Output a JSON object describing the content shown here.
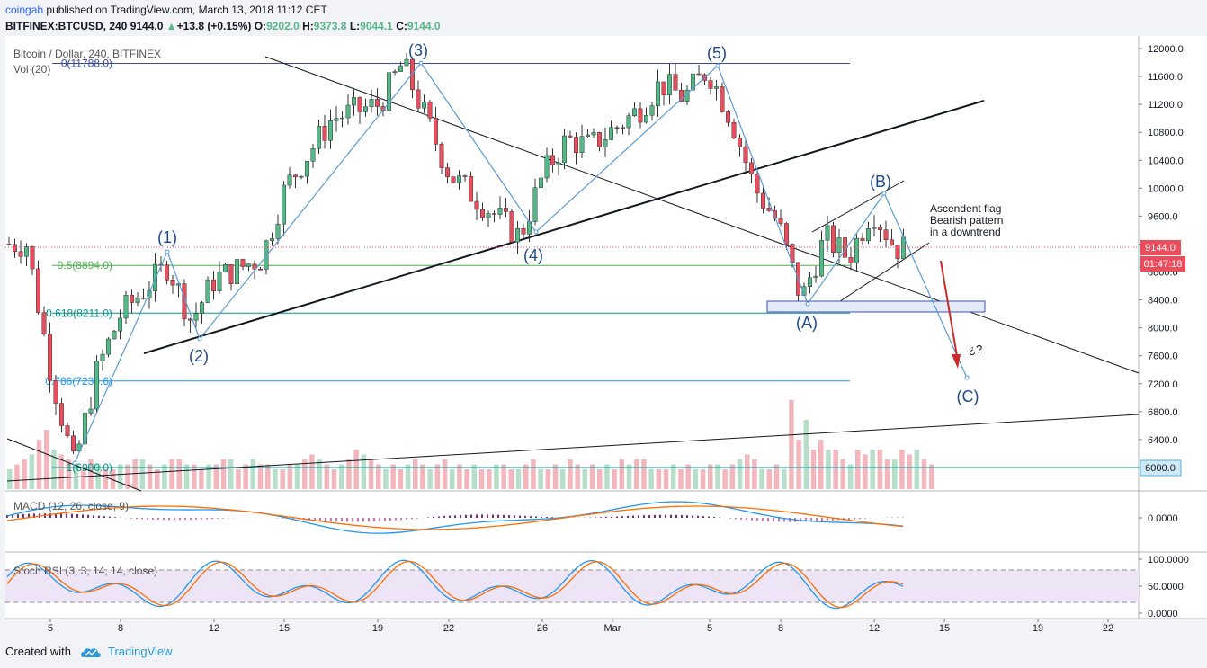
{
  "header": {
    "author": "coingab",
    "published_text": "published on TradingView.com, March 13, 2018 11:12 CET",
    "symbol": "BITFINEX:BTCUSD, 240",
    "last": "9144.0",
    "change_icon": "triangle-up-icon",
    "change": "+13.8 (+0.15%)",
    "o_label": "O:",
    "o": "9202.0",
    "h_label": "H:",
    "h": "9373.8",
    "l_label": "L:",
    "l": "9044.1",
    "c_label": "C:",
    "c": "9144.0"
  },
  "chart_labels": {
    "instrument": "Bitcoin / Dollar, 240, BITFINEX",
    "volume": "Vol (20)",
    "macd": "MACD (12, 26, close, 9)",
    "stoch": "Stoch RSI (3, 3, 14, 14, close)",
    "price_tag": "9144.0",
    "countdown_tag": "01:47:18",
    "level_6000_tag": "6000.0"
  },
  "colors": {
    "up": "#53b987",
    "down": "#eb4d5c",
    "wave": "#5b9bd5",
    "fib_0": "#3949ab",
    "fib_05": "#4caf50",
    "fib_0618": "#009688",
    "fib_0786": "#2196f3",
    "target_arrow": "#cc2a2a",
    "macd": "#2196f3",
    "signal": "#ff6d00",
    "stoch_band": "#ede4f5",
    "price_tag": "#eb4d5c"
  },
  "annotations": {
    "fib_levels": [
      {
        "label": "0(11788.0)",
        "price": 11788
      },
      {
        "label": "0.5(8894.0)",
        "price": 8894
      },
      {
        "label": "0.618(8211.0)",
        "price": 8211
      },
      {
        "label": "0.786(7238.6)",
        "price": 7238.6
      },
      {
        "label": "1(6000.0)",
        "price": 6000
      }
    ],
    "waves": [
      "(1)",
      "(2)",
      "(3)",
      "(4)",
      "(5)",
      "(A)",
      "(B)",
      "(C)"
    ],
    "flag_note": [
      "Ascendent flag",
      "Bearish pattern",
      "in a downtrend"
    ],
    "question": "¿?"
  },
  "footer": {
    "created_with": "Created with",
    "brand": "TradingView",
    "logo_icon": "tradingview-cloud-icon"
  },
  "chart_data": {
    "type": "candlestick",
    "title": "Bitcoin / Dollar, 240, BITFINEX",
    "price_axis": {
      "ticks": [
        12000,
        11600,
        11200,
        10800,
        10400,
        10000,
        9600,
        9200,
        8800,
        8400,
        8000,
        7600,
        7200,
        6800,
        6400,
        6000
      ],
      "range": [
        5750,
        12200
      ]
    },
    "x_ticks": [
      "5",
      "8",
      "12",
      "15",
      "19",
      "22",
      "26",
      "Mar",
      "5",
      "8",
      "12",
      "15",
      "19",
      "22"
    ],
    "series": [
      {
        "name": "BTCUSD",
        "close_path": [
          [
            "Feb 4",
            9200
          ],
          [
            "Feb 5",
            7400
          ],
          [
            "Feb 6",
            6000
          ],
          [
            "Feb 7",
            7400
          ],
          [
            "Feb 8",
            8200
          ],
          [
            "Feb 10",
            8900
          ],
          [
            "Feb 11",
            8100
          ],
          [
            "Feb 12",
            8700
          ],
          [
            "Feb 14",
            9000
          ],
          [
            "Feb 15",
            10000
          ],
          [
            "Feb 17",
            11000
          ],
          [
            "Feb 19",
            11200
          ],
          [
            "Feb 20",
            11788
          ],
          [
            "Feb 21",
            11000
          ],
          [
            "Feb 22",
            10200
          ],
          [
            "Feb 24",
            9600
          ],
          [
            "Feb 25",
            9300
          ],
          [
            "Feb 26",
            10200
          ],
          [
            "Feb 27",
            10700
          ],
          [
            "Feb 28",
            10600
          ],
          [
            "Mar 2",
            11100
          ],
          [
            "Mar 3",
            11500
          ],
          [
            "Mar 4",
            11300
          ],
          [
            "Mar 5",
            11700
          ],
          [
            "Mar 6",
            11000
          ],
          [
            "Mar 7",
            10000
          ],
          [
            "Mar 8",
            9500
          ],
          [
            "Mar 9",
            8400
          ],
          [
            "Mar 10",
            9300
          ],
          [
            "Mar 11",
            9000
          ],
          [
            "Mar 12",
            9700
          ],
          [
            "Mar 13",
            9144
          ]
        ],
        "last": {
          "open": 9202.0,
          "high": 9373.8,
          "low": 9044.1,
          "close": 9144.0
        }
      }
    ],
    "volume_profile": [
      2,
      2.5,
      3,
      3.5,
      5,
      6,
      4,
      3.5,
      3,
      2.5,
      2,
      3,
      2.5,
      2,
      2,
      2.5,
      2.5,
      3,
      3,
      2.5,
      2,
      2.5,
      3,
      3,
      2.5,
      2.5,
      2,
      2.5,
      2.5,
      3,
      3,
      2,
      2.5,
      3,
      2.5,
      2.5,
      2,
      2,
      2.5,
      2.5,
      3,
      3.5,
      3,
      2.5,
      2,
      2.5,
      3,
      4,
      3.5,
      3,
      2.5,
      2,
      2.5,
      2,
      2.5,
      3,
      2.5,
      2,
      2.5,
      3,
      2,
      2.5,
      2,
      2.5,
      2,
      2,
      2.5,
      2.5,
      2,
      2,
      2.5,
      3,
      2,
      2,
      2.5,
      2,
      3,
      2.5,
      2,
      2.5,
      2,
      2.5,
      2,
      3,
      2.5,
      3,
      3,
      2,
      2,
      2,
      2.5,
      2,
      2.5,
      2,
      2,
      2.5,
      2.5,
      2,
      2.5,
      3,
      3.5,
      3,
      2,
      2,
      2.5,
      2,
      9,
      5,
      7,
      4,
      5,
      4,
      4,
      3,
      2.5,
      4,
      3.5,
      4,
      4,
      3,
      3,
      4,
      3.5,
      4,
      3,
      2.5
    ],
    "stoch_levels": [
      100,
      80,
      50,
      20,
      0
    ]
  }
}
